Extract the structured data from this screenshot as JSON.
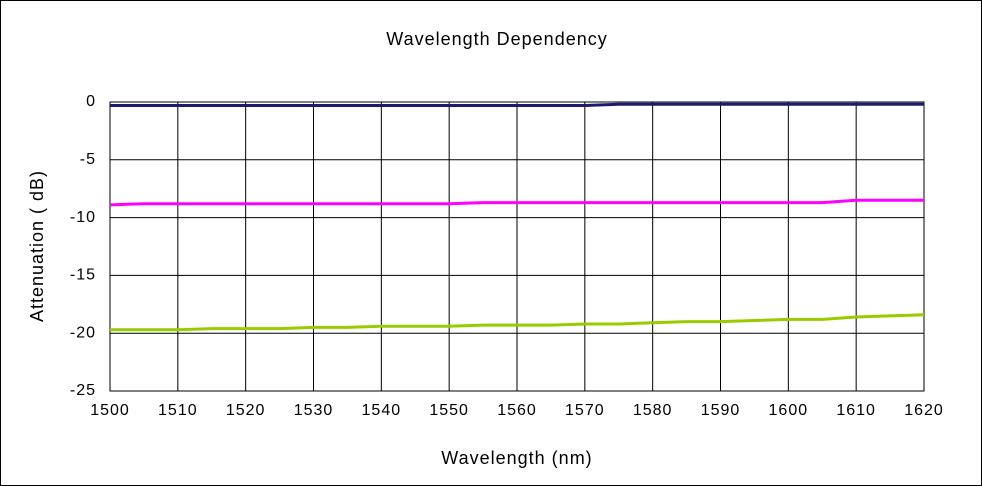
{
  "chart_data": {
    "type": "line",
    "title": "Wavelength Dependency",
    "xlabel": "Wavelength (nm)",
    "ylabel": "Attenuation ( dB)",
    "x": [
      1500,
      1505,
      1510,
      1515,
      1520,
      1525,
      1530,
      1535,
      1540,
      1545,
      1550,
      1555,
      1560,
      1565,
      1570,
      1575,
      1580,
      1585,
      1590,
      1595,
      1600,
      1605,
      1610,
      1615,
      1620
    ],
    "series": [
      {
        "color": "#1c1c6e",
        "values": [
          -0.3,
          -0.3,
          -0.3,
          -0.3,
          -0.3,
          -0.3,
          -0.3,
          -0.3,
          -0.3,
          -0.3,
          -0.3,
          -0.3,
          -0.3,
          -0.3,
          -0.3,
          -0.2,
          -0.2,
          -0.2,
          -0.2,
          -0.2,
          -0.2,
          -0.2,
          -0.2,
          -0.2,
          -0.2
        ]
      },
      {
        "color": "#ff00ff",
        "values": [
          -8.9,
          -8.8,
          -8.8,
          -8.8,
          -8.8,
          -8.8,
          -8.8,
          -8.8,
          -8.8,
          -8.8,
          -8.8,
          -8.7,
          -8.7,
          -8.7,
          -8.7,
          -8.7,
          -8.7,
          -8.7,
          -8.7,
          -8.7,
          -8.7,
          -8.7,
          -8.5,
          -8.5,
          -8.5
        ]
      },
      {
        "color": "#99cc00",
        "values": [
          -19.7,
          -19.7,
          -19.7,
          -19.6,
          -19.6,
          -19.6,
          -19.5,
          -19.5,
          -19.4,
          -19.4,
          -19.4,
          -19.3,
          -19.3,
          -19.3,
          -19.2,
          -19.2,
          -19.1,
          -19.0,
          -19.0,
          -18.9,
          -18.8,
          -18.8,
          -18.6,
          -18.5,
          -18.4
        ]
      }
    ],
    "xlim": [
      1500,
      1620
    ],
    "xticks": [
      1500,
      1510,
      1520,
      1530,
      1540,
      1550,
      1560,
      1570,
      1580,
      1590,
      1600,
      1610,
      1620
    ],
    "ylim": [
      -25,
      0
    ],
    "yticks": [
      -25,
      -20,
      -15,
      -10,
      -5,
      0
    ],
    "grid": true
  }
}
